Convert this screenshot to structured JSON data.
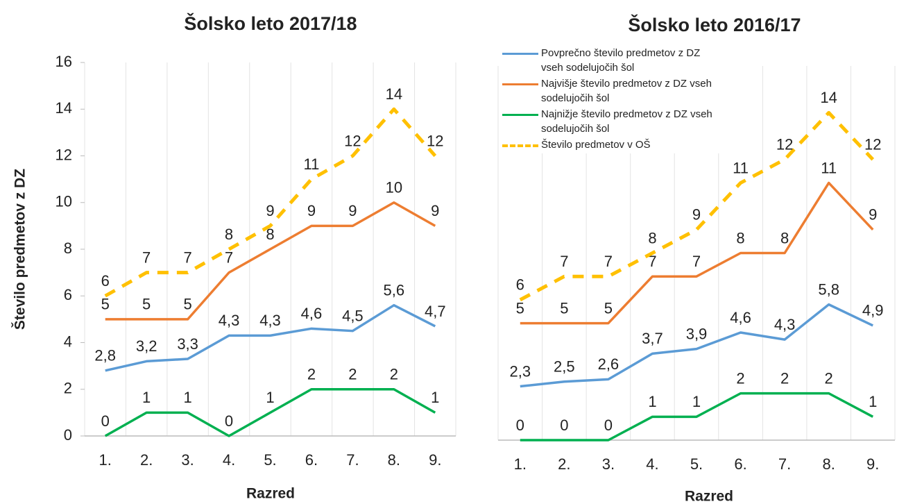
{
  "chart_data": [
    {
      "type": "line",
      "title": "Šolsko leto 2017/18",
      "ylabel": "Število predmetov z DZ",
      "xlabel": "Razred",
      "categories": [
        "1.",
        "2.",
        "3.",
        "4.",
        "5.",
        "6.",
        "7.",
        "8.",
        "9."
      ],
      "ylim": [
        0,
        16
      ],
      "yticks": [
        0,
        2,
        4,
        6,
        8,
        10,
        12,
        14,
        16
      ],
      "grid": true,
      "series": [
        {
          "color": "#5b9bd5",
          "values": [
            2.8,
            3.2,
            3.3,
            4.3,
            4.3,
            4.6,
            4.5,
            5.6,
            4.7
          ],
          "value_labels": [
            "2,8",
            "3,2",
            "3,3",
            "4,3",
            "4,3",
            "4,6",
            "4,5",
            "5,6",
            "4,7"
          ]
        },
        {
          "color": "#ed7d31",
          "values": [
            5,
            5,
            5,
            7,
            8,
            9,
            9,
            10,
            9
          ]
        },
        {
          "color": "#00b050",
          "values": [
            0,
            1,
            1,
            0,
            1,
            2,
            2,
            2,
            1
          ]
        },
        {
          "color": "#ffc000",
          "dash": true,
          "values": [
            6,
            7,
            7,
            8,
            9,
            11,
            12,
            14,
            12
          ]
        }
      ]
    },
    {
      "type": "line",
      "title": "Šolsko leto 2016/17",
      "xlabel": "Razred",
      "categories": [
        "1.",
        "2.",
        "3.",
        "4.",
        "5.",
        "6.",
        "7.",
        "8.",
        "9."
      ],
      "ylim": [
        0,
        16
      ],
      "grid": true,
      "legend": "upper left",
      "series": [
        {
          "name": "Povprečno število predmetov z DZ vseh sodelujočih šol",
          "color": "#5b9bd5",
          "values": [
            2.3,
            2.5,
            2.6,
            3.7,
            3.9,
            4.6,
            4.3,
            5.8,
            4.9
          ],
          "value_labels": [
            "2,3",
            "2,5",
            "2,6",
            "3,7",
            "3,9",
            "4,6",
            "4,3",
            "5,8",
            "4,9"
          ]
        },
        {
          "name": "Najvišje število predmetov z DZ vseh sodelujočih šol",
          "color": "#ed7d31",
          "values": [
            5,
            5,
            5,
            7,
            7,
            8,
            8,
            11,
            9
          ]
        },
        {
          "name": "Najnižje število predmetov z DZ vseh sodelujočih šol",
          "color": "#00b050",
          "values": [
            0,
            0,
            0,
            1,
            1,
            2,
            2,
            2,
            1
          ]
        },
        {
          "name": "Število predmetov v OŠ",
          "color": "#ffc000",
          "dash": true,
          "values": [
            6,
            7,
            7,
            8,
            9,
            11,
            12,
            14,
            12
          ]
        }
      ]
    }
  ]
}
